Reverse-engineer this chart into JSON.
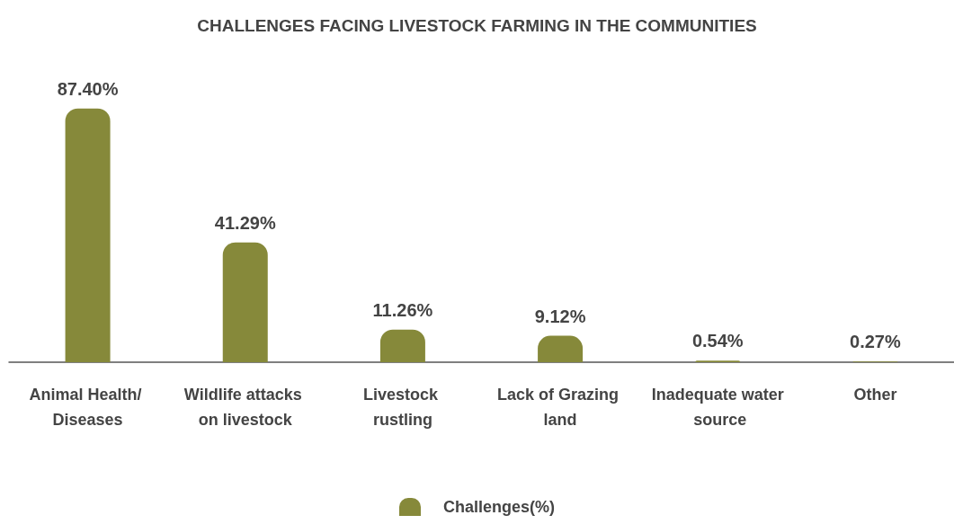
{
  "chart_data": {
    "type": "bar",
    "title": "CHALLENGES FACING LIVESTOCK FARMING IN THE COMMUNITIES",
    "categories": [
      "Animal Health/ Diseases",
      "Wildlife attacks on livestock",
      "Livestock rustling",
      "Lack of Grazing land",
      "Inadequate water source",
      "Other"
    ],
    "series": [
      {
        "name": "Challenges(%)",
        "color": "#86893a",
        "values": [
          87.4,
          41.29,
          11.26,
          9.12,
          0.54,
          0.27
        ],
        "value_labels": [
          "87.40%",
          "41.29%",
          "11.26%",
          "9.12%",
          "0.54%",
          "0.27%"
        ]
      }
    ],
    "legend": "bottom",
    "grid": false,
    "tick_labels": "x"
  }
}
